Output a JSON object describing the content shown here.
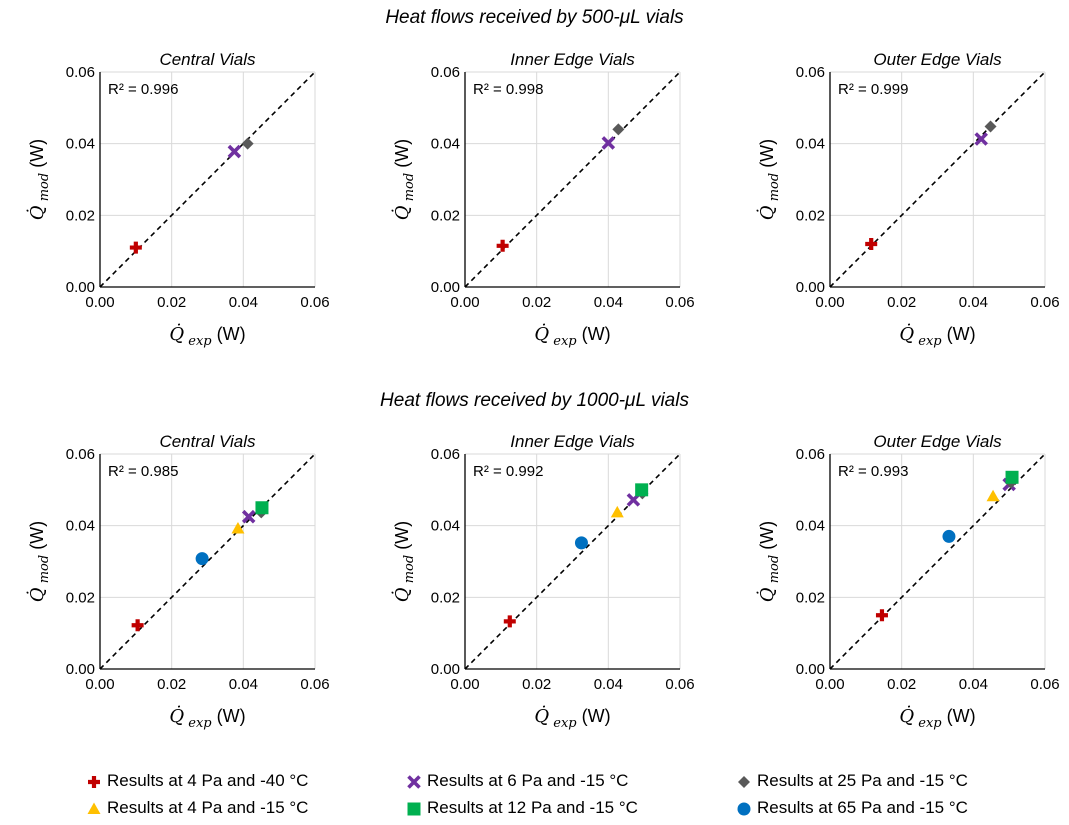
{
  "figure": {
    "section_titles": [
      "Heat flows received by 500-μL vials",
      "Heat flows received by 1000-μL vials"
    ],
    "x_axis_label": {
      "symbol": "Q",
      "subscript": "exp",
      "unit": "(W)"
    },
    "y_axis_label": {
      "symbol": "Q",
      "subscript": "mod",
      "unit": "(W)"
    },
    "tick_labels": [
      "0.00",
      "0.02",
      "0.04",
      "0.06"
    ]
  },
  "series": [
    {
      "name": "Results at 4 Pa and -40 °C",
      "marker": "plus",
      "color": "#c00000"
    },
    {
      "name": "Results at 6 Pa and -15 °C",
      "marker": "x",
      "color": "#7030a0"
    },
    {
      "name": "Results at 25 Pa and -15 °C",
      "marker": "diamond",
      "color": "#595959"
    },
    {
      "name": "Results at 4 Pa and -15 °C",
      "marker": "triangle",
      "color": "#ffc000"
    },
    {
      "name": "Results at 12 Pa and -15 °C",
      "marker": "square",
      "color": "#00b050"
    },
    {
      "name": "Results at 65 Pa and -15 °C",
      "marker": "circle",
      "color": "#0070c0"
    }
  ],
  "chart_data": [
    {
      "type": "scatter",
      "title": "Central Vials",
      "annotation": "R² = 0.996",
      "xlim": [
        0,
        0.06
      ],
      "ylim": [
        0,
        0.06
      ],
      "grid": true,
      "reference_line": "y = x (dashed)",
      "points": [
        {
          "series": 0,
          "x": 0.01,
          "y": 0.011
        },
        {
          "series": 1,
          "x": 0.0375,
          "y": 0.0378
        },
        {
          "series": 2,
          "x": 0.0412,
          "y": 0.04
        }
      ]
    },
    {
      "type": "scatter",
      "title": "Inner Edge Vials",
      "annotation": "R² = 0.998",
      "xlim": [
        0,
        0.06
      ],
      "ylim": [
        0,
        0.06
      ],
      "grid": true,
      "reference_line": "y = x (dashed)",
      "points": [
        {
          "series": 0,
          "x": 0.0105,
          "y": 0.0115
        },
        {
          "series": 1,
          "x": 0.04,
          "y": 0.0402
        },
        {
          "series": 2,
          "x": 0.0428,
          "y": 0.044
        }
      ]
    },
    {
      "type": "scatter",
      "title": "Outer Edge Vials",
      "annotation": "R² = 0.999",
      "xlim": [
        0,
        0.06
      ],
      "ylim": [
        0,
        0.06
      ],
      "grid": true,
      "reference_line": "y = x (dashed)",
      "points": [
        {
          "series": 0,
          "x": 0.0115,
          "y": 0.012
        },
        {
          "series": 1,
          "x": 0.0422,
          "y": 0.0413
        },
        {
          "series": 2,
          "x": 0.0448,
          "y": 0.0448
        }
      ]
    },
    {
      "type": "scatter",
      "title": "Central Vials",
      "annotation": "R² = 0.985",
      "xlim": [
        0,
        0.06
      ],
      "ylim": [
        0,
        0.06
      ],
      "grid": true,
      "reference_line": "y = x (dashed)",
      "points": [
        {
          "series": 0,
          "x": 0.0105,
          "y": 0.0122
        },
        {
          "series": 3,
          "x": 0.0385,
          "y": 0.0392
        },
        {
          "series": 1,
          "x": 0.0415,
          "y": 0.0425
        },
        {
          "series": 2,
          "x": 0.045,
          "y": 0.0437
        },
        {
          "series": 4,
          "x": 0.0452,
          "y": 0.045
        },
        {
          "series": 5,
          "x": 0.0285,
          "y": 0.0308
        }
      ]
    },
    {
      "type": "scatter",
      "title": "Inner Edge Vials",
      "annotation": "R² = 0.992",
      "xlim": [
        0,
        0.06
      ],
      "ylim": [
        0,
        0.06
      ],
      "grid": true,
      "reference_line": "y = x (dashed)",
      "points": [
        {
          "series": 0,
          "x": 0.0125,
          "y": 0.0133
        },
        {
          "series": 3,
          "x": 0.0425,
          "y": 0.0437
        },
        {
          "series": 1,
          "x": 0.047,
          "y": 0.0472
        },
        {
          "series": 2,
          "x": 0.0495,
          "y": 0.049
        },
        {
          "series": 4,
          "x": 0.0493,
          "y": 0.05
        },
        {
          "series": 5,
          "x": 0.0325,
          "y": 0.0352
        }
      ]
    },
    {
      "type": "scatter",
      "title": "Outer Edge Vials",
      "annotation": "R² = 0.993",
      "xlim": [
        0,
        0.06
      ],
      "ylim": [
        0,
        0.06
      ],
      "grid": true,
      "reference_line": "y = x (dashed)",
      "points": [
        {
          "series": 0,
          "x": 0.0145,
          "y": 0.015
        },
        {
          "series": 3,
          "x": 0.0455,
          "y": 0.0482
        },
        {
          "series": 1,
          "x": 0.05,
          "y": 0.0515
        },
        {
          "series": 2,
          "x": 0.0505,
          "y": 0.052
        },
        {
          "series": 4,
          "x": 0.0508,
          "y": 0.0535
        },
        {
          "series": 5,
          "x": 0.0332,
          "y": 0.037
        }
      ]
    }
  ]
}
